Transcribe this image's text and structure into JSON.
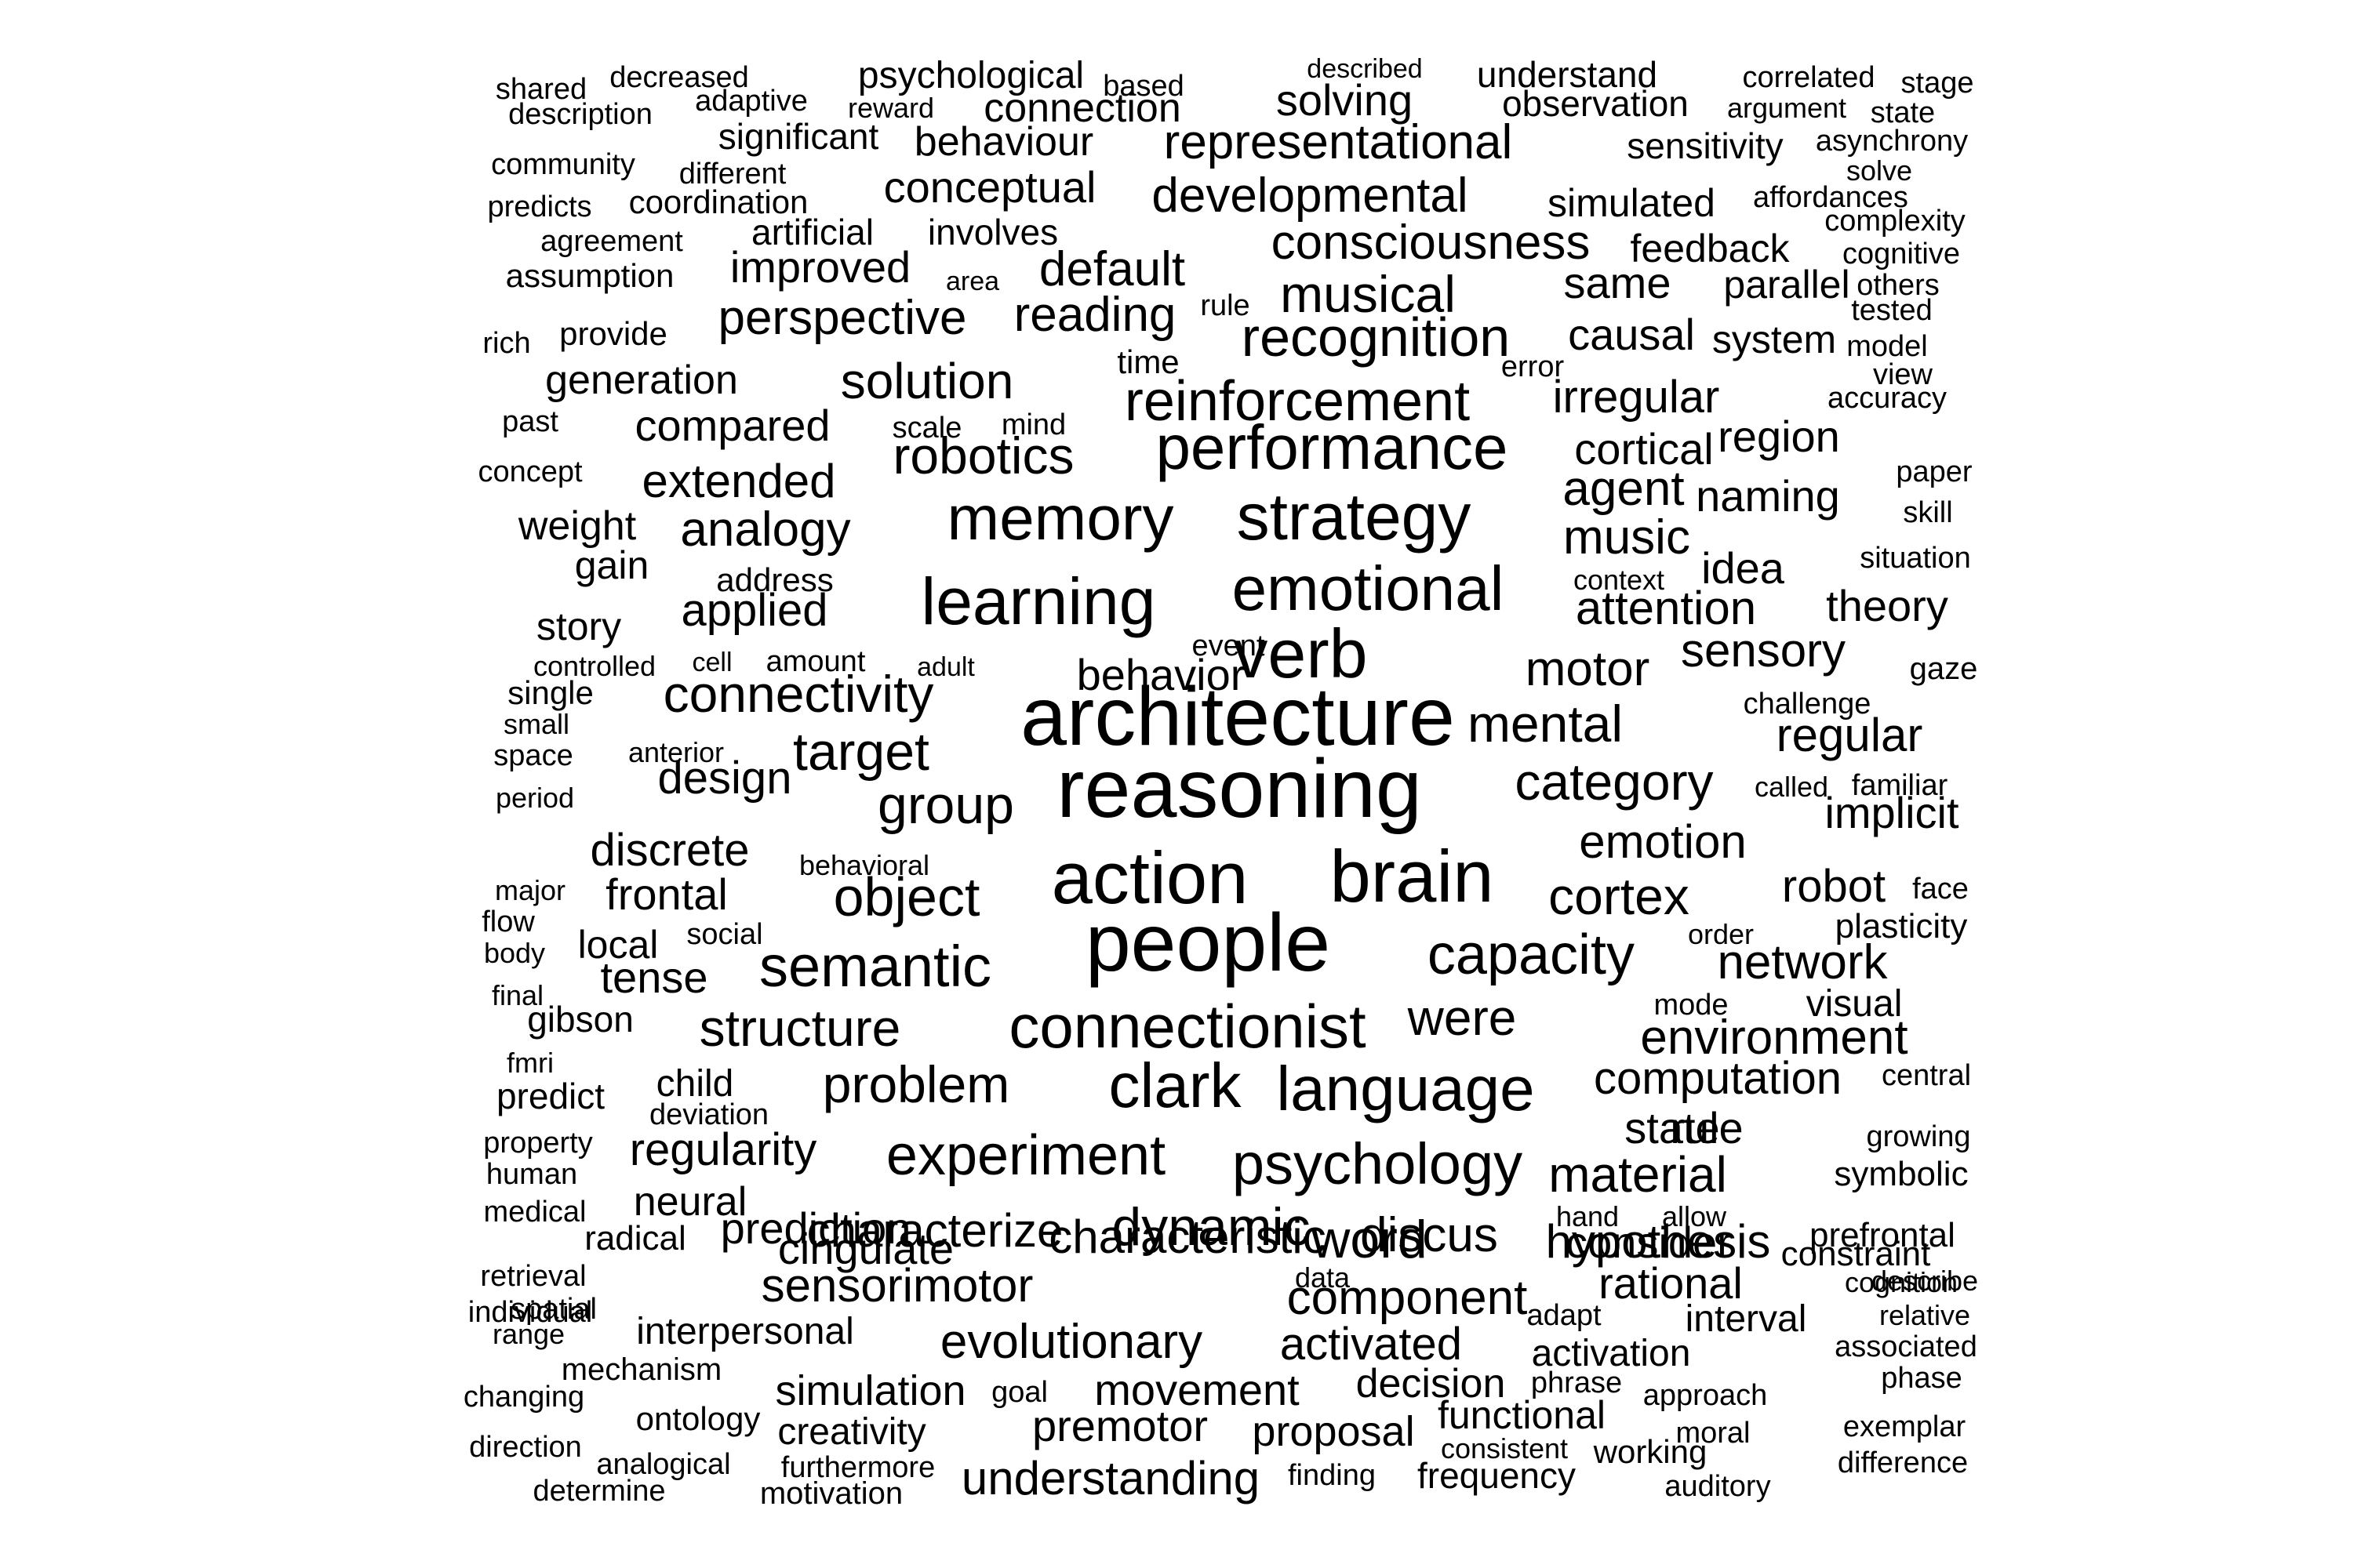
{
  "words": [
    "shared",
    "decreased",
    "psychological",
    "based",
    "described",
    "understand",
    "correlated",
    "stage",
    "description",
    "adaptive",
    "reward",
    "connection",
    "solving",
    "observation",
    "argument",
    "state",
    "significant",
    "behaviour",
    "representational",
    "sensitivity",
    "asynchrony",
    "community",
    "different",
    "solve",
    "predicts",
    "coordination",
    "conceptual",
    "developmental",
    "simulated",
    "affordances",
    "complexity",
    "agreement",
    "artificial",
    "involves",
    "consciousness",
    "feedback",
    "cognitive",
    "assumption",
    "improved",
    "area",
    "default",
    "musical",
    "same",
    "parallel",
    "others",
    "tested",
    "rich",
    "provide",
    "perspective",
    "reading",
    "rule",
    "recognition",
    "causal",
    "system",
    "model",
    "time",
    "error",
    "view",
    "generation",
    "solution",
    "past",
    "mind",
    "reinforcement",
    "irregular",
    "accuracy",
    "scale",
    "compared",
    "region",
    "concept",
    "robotics",
    "performance",
    "cortical",
    "paper",
    "extended",
    "agent",
    "naming",
    "skill",
    "weight",
    "analogy",
    "memory",
    "strategy",
    "music",
    "gain",
    "situation",
    "address",
    "context",
    "idea",
    "emotional",
    "learning",
    "story",
    "applied",
    "attention",
    "theory",
    "event",
    "controlled",
    "cell",
    "amount",
    "adult",
    "verb",
    "behavior",
    "motor",
    "sensory",
    "gaze",
    "single",
    "connectivity",
    "challenge",
    "small",
    "architecture",
    "mental",
    "regular",
    "space",
    "anterior",
    "target",
    "period",
    "design",
    "called",
    "familiar",
    "reasoning",
    "category",
    "implicit",
    "group",
    "emotion",
    "discrete",
    "behavioral",
    "major",
    "object",
    "frontal",
    "action",
    "brain",
    "robot",
    "face",
    "cortex",
    "flow",
    "body",
    "social",
    "local",
    "plasticity",
    "order",
    "tense",
    "semantic",
    "people",
    "capacity",
    "network",
    "final",
    "mode",
    "visual",
    "gibson",
    "structure",
    "were",
    "connectionist",
    "environment",
    "fmri",
    "child",
    "central",
    "computation",
    "predict",
    "problem",
    "clark",
    "deviation",
    "language",
    "state",
    "rule",
    "property",
    "regularity",
    "growing",
    "human",
    "experiment",
    "psychology",
    "material",
    "symbolic",
    "neural",
    "medical",
    "hand",
    "allow",
    "radical",
    "characterize",
    "dynamic",
    "word",
    "hypothesis",
    "prefrontal",
    "retrieval",
    "prediction",
    "describe",
    "characteristic",
    "discus",
    "consider",
    "spatial",
    "constraint",
    "cingulate",
    "sensorimotor",
    "data",
    "cognition",
    "rational",
    "individual",
    "component",
    "range",
    "relative",
    "adapt",
    "interpersonal",
    "interval",
    "evolutionary",
    "associated",
    "activated",
    "mechanism",
    "activation",
    "phase",
    "phrase",
    "decision",
    "changing",
    "goal",
    "simulation",
    "movement",
    "approach",
    "ontology",
    "functional",
    "exemplar",
    "premotor",
    "creativity",
    "moral",
    "direction",
    "proposal",
    "consistent",
    "working",
    "difference",
    "analogical",
    "furthermore",
    "finding",
    "frequency",
    "auditory",
    "understanding",
    "determine",
    "motivation"
  ]
}
